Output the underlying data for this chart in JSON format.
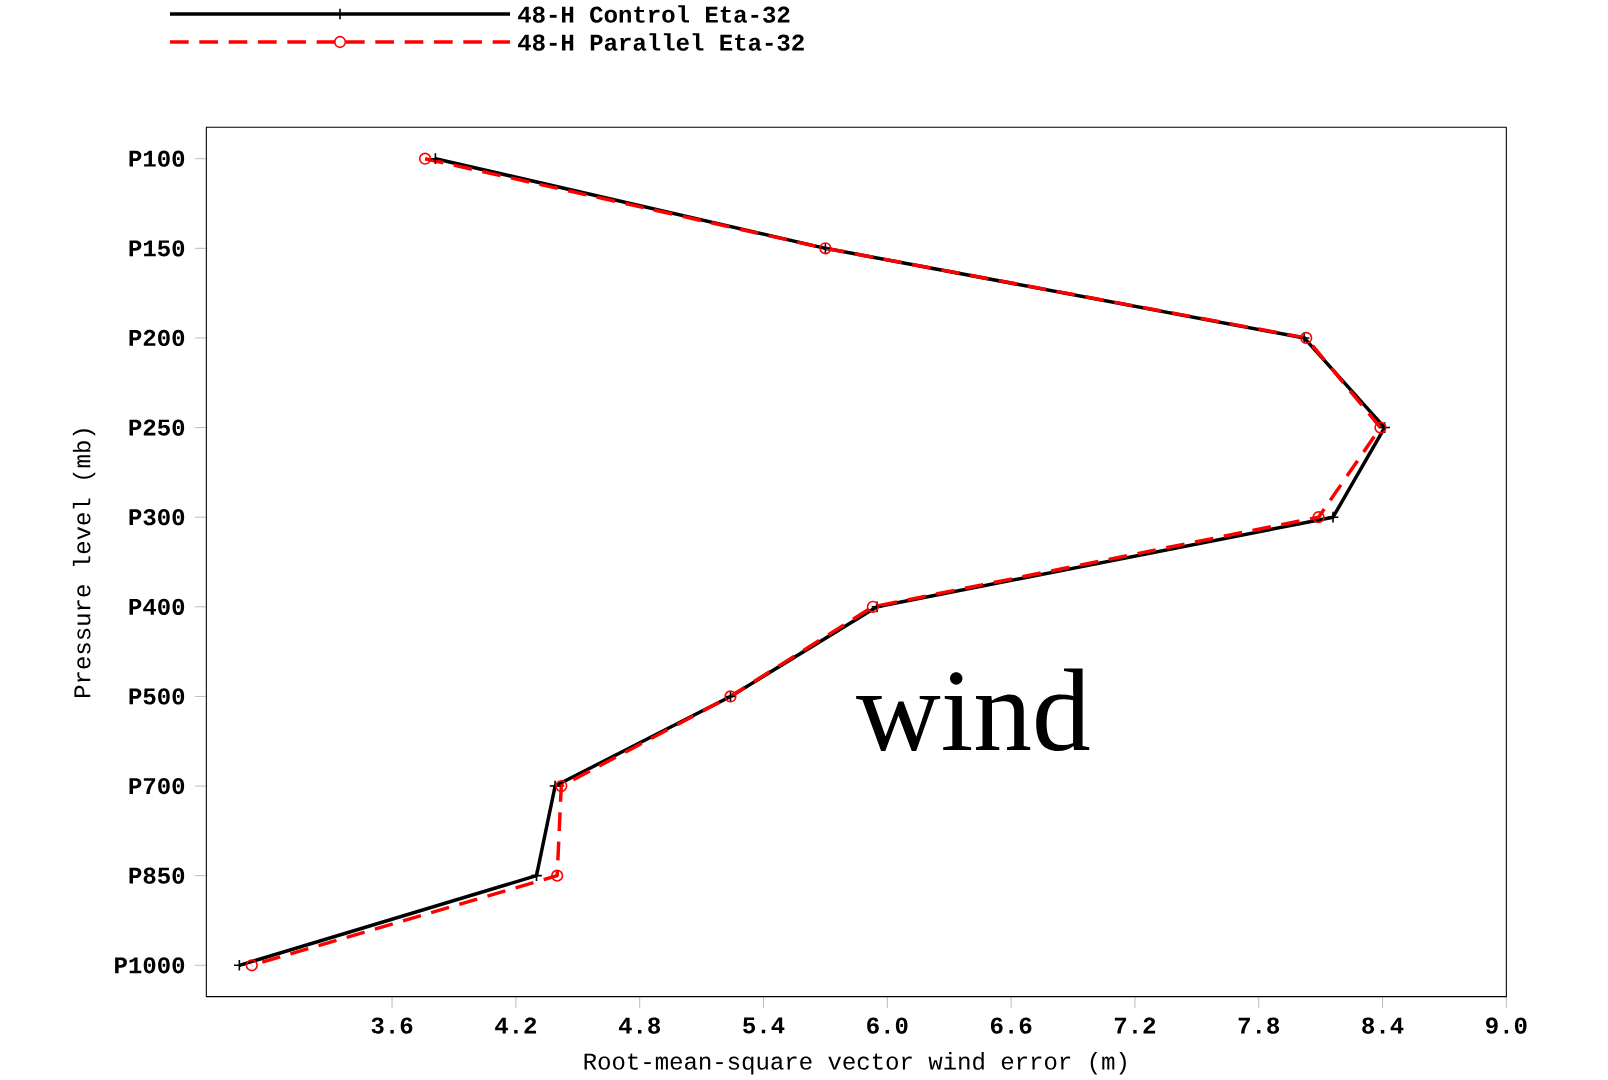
{
  "chart_data": {
    "type": "line",
    "orientation": "horizontal",
    "xlabel": "Root-mean-square vector wind error (m)",
    "ylabel": "Pressure level (mb)",
    "categories": [
      "P100",
      "P150",
      "P200",
      "P250",
      "P300",
      "P400",
      "P500",
      "P700",
      "P850",
      "P1000"
    ],
    "series": [
      {
        "name": "48-H Control Eta-32",
        "color": "#000000",
        "marker": "cross",
        "line_style": "solid",
        "values": [
          3.81,
          5.7,
          8.02,
          8.41,
          8.16,
          5.95,
          5.24,
          4.39,
          4.3,
          2.86
        ]
      },
      {
        "name": "48-H Parallel Eta-32",
        "color": "#ff0000",
        "marker": "circle",
        "line_style": "dashed",
        "values": [
          3.76,
          5.7,
          8.03,
          8.39,
          8.09,
          5.93,
          5.24,
          4.42,
          4.4,
          2.92
        ]
      }
    ],
    "xlim": [
      2.7,
      9
    ],
    "xticks": [
      3.6,
      4.2,
      4.8,
      5.4,
      {
        "value": 6,
        "label": "6.0"
      },
      6.6,
      7.2,
      7.8,
      8.4,
      {
        "value": 9,
        "label": "9.0"
      }
    ],
    "grid": false,
    "legend": "top left",
    "annotations": [
      "wind"
    ]
  }
}
